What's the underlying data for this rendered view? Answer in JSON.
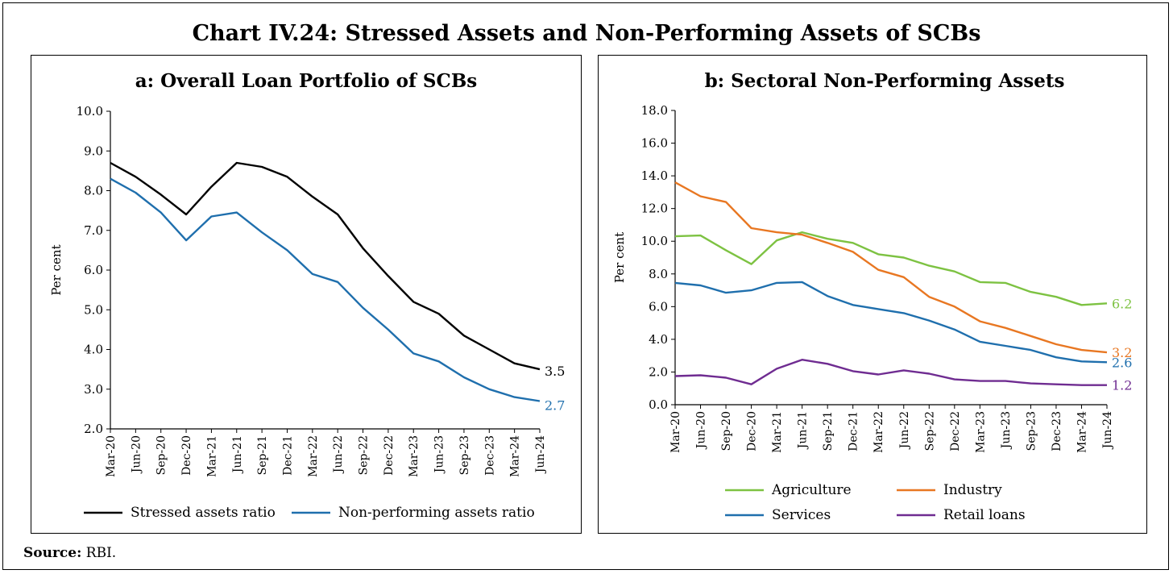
{
  "title": "Chart IV.24: Stressed Assets and Non-Performing Assets of SCBs",
  "source": {
    "label": "Source:",
    "text": "RBI."
  },
  "chart_data": [
    {
      "type": "line",
      "title": "a: Overall Loan Portfolio of SCBs",
      "ylabel": "Per cent",
      "xlabel": "",
      "ylim": [
        2.0,
        10.0
      ],
      "yticks": [
        "2.0",
        "3.0",
        "4.0",
        "5.0",
        "6.0",
        "7.0",
        "8.0",
        "9.0",
        "10.0"
      ],
      "categories": [
        "Mar-20",
        "Jun-20",
        "Sep-20",
        "Dec-20",
        "Mar-21",
        "Jun-21",
        "Sep-21",
        "Dec-21",
        "Mar-22",
        "Jun-22",
        "Sep-22",
        "Dec-22",
        "Mar-23",
        "Jun-23",
        "Sep-23",
        "Dec-23",
        "Mar-24",
        "Jun-24"
      ],
      "legend_position": "bottom",
      "grid": false,
      "series": [
        {
          "name": "Stressed assets ratio",
          "color": "#000000",
          "end_label": "3.5",
          "values": [
            8.7,
            8.35,
            7.9,
            7.4,
            8.1,
            8.7,
            8.6,
            8.35,
            7.85,
            7.4,
            6.55,
            5.85,
            5.2,
            4.9,
            4.35,
            4.0,
            3.65,
            3.5
          ]
        },
        {
          "name": "Non-performing assets ratio",
          "color": "#1f6fad",
          "end_label": "2.7",
          "values": [
            8.3,
            7.95,
            7.45,
            6.75,
            7.35,
            7.45,
            6.95,
            6.5,
            5.9,
            5.7,
            5.05,
            4.5,
            3.9,
            3.7,
            3.3,
            3.0,
            2.8,
            2.7
          ]
        }
      ]
    },
    {
      "type": "line",
      "title": "b: Sectoral Non-Performing Assets",
      "ylabel": "Per cent",
      "xlabel": "",
      "ylim": [
        0.0,
        18.0
      ],
      "yticks": [
        "0.0",
        "2.0",
        "4.0",
        "6.0",
        "8.0",
        "10.0",
        "12.0",
        "14.0",
        "16.0",
        "18.0"
      ],
      "categories": [
        "Mar-20",
        "Jun-20",
        "Sep-20",
        "Dec-20",
        "Mar-21",
        "Jun-21",
        "Sep-21",
        "Dec-21",
        "Mar-22",
        "Jun-22",
        "Sep-22",
        "Dec-22",
        "Mar-23",
        "Jun-23",
        "Sep-23",
        "Dec-23",
        "Mar-24",
        "Jun-24"
      ],
      "legend_position": "bottom",
      "grid": false,
      "series": [
        {
          "name": "Agriculture",
          "color": "#7dc242",
          "end_label": "6.2",
          "values": [
            10.3,
            10.35,
            9.45,
            8.6,
            10.05,
            10.55,
            10.15,
            9.9,
            9.2,
            9.0,
            8.5,
            8.15,
            7.5,
            7.45,
            6.9,
            6.6,
            6.1,
            6.2
          ]
        },
        {
          "name": "Industry",
          "color": "#e87722",
          "end_label": "3.2",
          "values": [
            13.6,
            12.75,
            12.4,
            10.8,
            10.55,
            10.4,
            9.9,
            9.35,
            8.25,
            7.8,
            6.6,
            6.0,
            5.1,
            4.7,
            4.2,
            3.7,
            3.35,
            3.2
          ]
        },
        {
          "name": "Services",
          "color": "#1f6fad",
          "end_label": "2.6",
          "values": [
            7.45,
            7.3,
            6.85,
            7.0,
            7.45,
            7.5,
            6.65,
            6.1,
            5.85,
            5.6,
            5.15,
            4.6,
            3.85,
            3.6,
            3.35,
            2.9,
            2.65,
            2.6
          ]
        },
        {
          "name": "Retail loans",
          "color": "#6f2c91",
          "end_label": "1.2",
          "values": [
            1.75,
            1.8,
            1.65,
            1.25,
            2.2,
            2.75,
            2.5,
            2.05,
            1.85,
            2.1,
            1.9,
            1.55,
            1.45,
            1.45,
            1.3,
            1.25,
            1.2,
            1.2
          ]
        }
      ]
    }
  ]
}
